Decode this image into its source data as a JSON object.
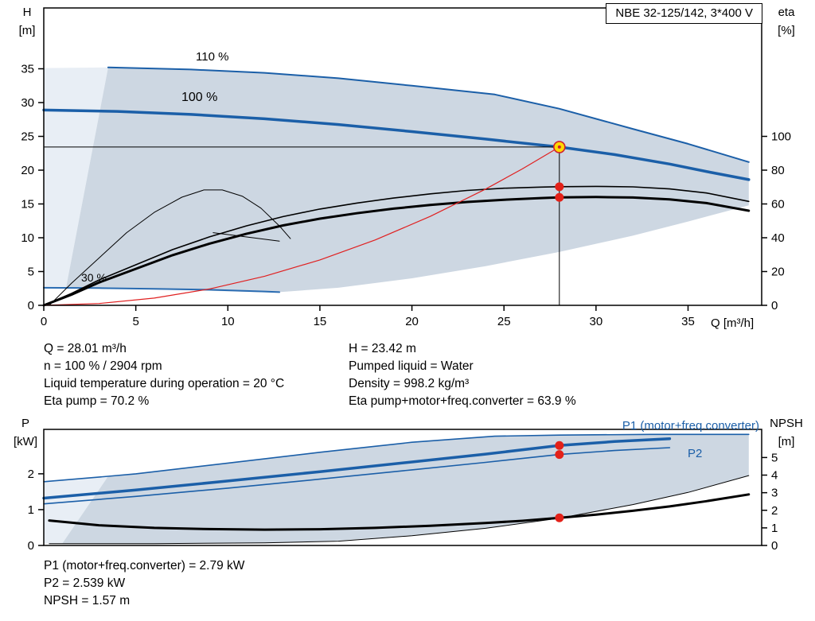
{
  "title": "NBE 32-125/142, 3*400 V",
  "axes": {
    "h": [
      "H",
      "[m]"
    ],
    "eta": [
      "eta",
      "[%]"
    ],
    "q": "Q [m³/h]",
    "p": [
      "P",
      "[kW]"
    ],
    "npsh": [
      "NPSH",
      "[m]"
    ]
  },
  "info_top": {
    "left": [
      "Q = 28.01 m³/h",
      "n = 100 % / 2904 rpm",
      "Liquid temperature during operation = 20 °C",
      "Eta pump = 70.2 %"
    ],
    "right": [
      "H = 23.42 m",
      "Pumped liquid = Water",
      "Density = 998.2 kg/m³",
      "Eta pump+motor+freq.converter = 63.9 %"
    ]
  },
  "info_bottom": [
    "P1 (motor+freq.converter) = 2.79 kW",
    "P2 = 2.539 kW",
    "NPSH = 1.57 m"
  ],
  "colors": {
    "curve_blue": "#1b5fa8",
    "envelope": "#cdd7e2",
    "envelope_light": "#e8eef5",
    "system_red": "#e02020",
    "marker_red": "#e32119",
    "marker_yellow": "#ffd900",
    "black": "#000000"
  },
  "chart_data": [
    {
      "type": "line",
      "name": "head-flow-chart",
      "xlabel": "Q [m³/h]",
      "ylabel": "H [m]",
      "y2label": "eta [%]",
      "xlim": [
        0,
        39
      ],
      "ylim": [
        0,
        44
      ],
      "y2lim": [
        0,
        176
      ],
      "xticks": [
        0,
        5,
        10,
        15,
        20,
        25,
        30,
        35
      ],
      "yticks": [
        0,
        5,
        10,
        15,
        20,
        25,
        30,
        35
      ],
      "y2ticks": [
        0,
        20,
        40,
        60,
        80,
        100
      ],
      "show_xtick_labels": true,
      "areas": [
        {
          "name": "operating-range-light",
          "color": "#e8eef5",
          "points": [
            [
              0,
              2.5
            ],
            [
              0,
              35.1
            ],
            [
              3.5,
              35.2
            ],
            [
              1.2,
              2.5
            ]
          ]
        },
        {
          "name": "operating-range",
          "color": "#cdd7e2",
          "points": [
            [
              3.5,
              35.2
            ],
            [
              8,
              34.9
            ],
            [
              12,
              34.4
            ],
            [
              16,
              33.6
            ],
            [
              20,
              32.5
            ],
            [
              24.5,
              31.2
            ],
            [
              28,
              29.1
            ],
            [
              32,
              26.1
            ],
            [
              35,
              23.9
            ],
            [
              38.3,
              21.2
            ],
            [
              38.3,
              14.8
            ],
            [
              35,
              12.4
            ],
            [
              32,
              10.3
            ],
            [
              28,
              7.9
            ],
            [
              24,
              5.8
            ],
            [
              20,
              4.0
            ],
            [
              16,
              2.6
            ],
            [
              12.5,
              1.9
            ],
            [
              9,
              2.15
            ],
            [
              5,
              2.4
            ],
            [
              1.2,
              2.5
            ]
          ]
        }
      ],
      "series": [
        {
          "name": "head-curve-110pct",
          "label": "110 %",
          "axis": "y",
          "color": "#1b5fa8",
          "width": 2,
          "points": [
            [
              3.5,
              35.2
            ],
            [
              8,
              34.9
            ],
            [
              12,
              34.4
            ],
            [
              16,
              33.6
            ],
            [
              20,
              32.5
            ],
            [
              24.5,
              31.2
            ],
            [
              28,
              29.1
            ],
            [
              32,
              26.1
            ],
            [
              35,
              23.9
            ],
            [
              38.3,
              21.2
            ]
          ]
        },
        {
          "name": "head-curve-100pct",
          "label": "100 %",
          "axis": "y",
          "color": "#1b5fa8",
          "width": 3.5,
          "points": [
            [
              0,
              28.9
            ],
            [
              4,
              28.7
            ],
            [
              8,
              28.25
            ],
            [
              12,
              27.6
            ],
            [
              16,
              26.75
            ],
            [
              20,
              25.7
            ],
            [
              24,
              24.6
            ],
            [
              28.01,
              23.42
            ],
            [
              31,
              22.3
            ],
            [
              34,
              20.9
            ],
            [
              36.2,
              19.7
            ],
            [
              38.3,
              18.6
            ]
          ]
        },
        {
          "name": "head-curve-30pct",
          "label": "30 %",
          "axis": "y",
          "color": "#2a6cb2",
          "width": 2,
          "points": [
            [
              0,
              2.6
            ],
            [
              3,
              2.55
            ],
            [
              6,
              2.45
            ],
            [
              9,
              2.3
            ],
            [
              12,
              2.05
            ],
            [
              12.8,
              1.95
            ]
          ]
        },
        {
          "name": "eta-pump-curve",
          "axis": "y2",
          "color": "#000000",
          "width": 1.6,
          "points": [
            [
              0,
              0
            ],
            [
              1.5,
              7
            ],
            [
              3,
              15
            ],
            [
              5,
              24
            ],
            [
              7,
              33
            ],
            [
              9,
              40.5
            ],
            [
              11,
              47
            ],
            [
              13,
              52.5
            ],
            [
              15,
              57
            ],
            [
              17,
              60.5
            ],
            [
              19,
              63.5
            ],
            [
              21,
              66
            ],
            [
              23,
              68
            ],
            [
              25,
              69.3
            ],
            [
              27,
              70
            ],
            [
              28.01,
              70.2
            ],
            [
              30,
              70.4
            ],
            [
              32,
              70.1
            ],
            [
              34,
              68.9
            ],
            [
              36,
              66.5
            ],
            [
              38.3,
              61.5
            ]
          ]
        },
        {
          "name": "eta-total-curve",
          "axis": "y2",
          "color": "#000000",
          "width": 3,
          "points": [
            [
              0,
              0
            ],
            [
              1.5,
              6.3
            ],
            [
              3,
              13.5
            ],
            [
              5,
              21.6
            ],
            [
              7,
              29.7
            ],
            [
              9,
              36.5
            ],
            [
              11,
              42.3
            ],
            [
              13,
              47.3
            ],
            [
              15,
              51.3
            ],
            [
              17,
              54.5
            ],
            [
              19,
              57.2
            ],
            [
              21,
              59.4
            ],
            [
              23,
              61.2
            ],
            [
              25,
              62.5
            ],
            [
              27,
              63.5
            ],
            [
              28.01,
              63.9
            ],
            [
              30,
              64.1
            ],
            [
              32,
              63.8
            ],
            [
              34,
              62.7
            ],
            [
              36,
              60.5
            ],
            [
              38.3,
              56
            ]
          ]
        },
        {
          "name": "eta-reduced-speed-curve",
          "axis": "y2",
          "color": "#000000",
          "width": 1,
          "points": [
            [
              0.3,
              0
            ],
            [
              1.5,
              13
            ],
            [
              3,
              28
            ],
            [
              4.5,
              43
            ],
            [
              6,
              55
            ],
            [
              7.5,
              64
            ],
            [
              8.7,
              68.3
            ],
            [
              9.7,
              68.3
            ],
            [
              10.8,
              64.5
            ],
            [
              11.8,
              57.5
            ],
            [
              12.8,
              47
            ],
            [
              13.4,
              39.5
            ]
          ]
        },
        {
          "name": "eta-pointer-line",
          "axis": "y2",
          "color": "#000000",
          "width": 1,
          "points": [
            [
              9.2,
              43
            ],
            [
              12.8,
              38
            ]
          ]
        },
        {
          "name": "system-curve",
          "axis": "y",
          "color": "#e02020",
          "width": 1.2,
          "points": [
            [
              0,
              0
            ],
            [
              3,
              0.27
            ],
            [
              6,
              1.07
            ],
            [
              9,
              2.42
            ],
            [
              12,
              4.3
            ],
            [
              15,
              6.72
            ],
            [
              18,
              9.67
            ],
            [
              21,
              13.17
            ],
            [
              24,
              17.2
            ],
            [
              26,
              20.19
            ],
            [
              28.01,
              23.42
            ]
          ]
        },
        {
          "name": "duty-crosshair-vertical",
          "axis": "y",
          "color": "#000000",
          "width": 1,
          "points": [
            [
              28.01,
              0
            ],
            [
              28.01,
              23.42
            ]
          ]
        },
        {
          "name": "duty-crosshair-horizontal",
          "axis": "y",
          "color": "#000000",
          "width": 1,
          "points": [
            [
              0,
              23.42
            ],
            [
              28.01,
              23.42
            ]
          ]
        }
      ],
      "markers": [
        {
          "name": "duty-point",
          "type": "ring",
          "axis": "y",
          "x": 28.01,
          "y": 23.42
        },
        {
          "name": "eta-pump-point",
          "type": "dot",
          "axis": "y2",
          "x": 28.01,
          "y": 70.2
        },
        {
          "name": "eta-total-point",
          "type": "dot",
          "axis": "y2",
          "x": 28.01,
          "y": 63.9
        }
      ]
    },
    {
      "type": "line",
      "name": "power-npsh-chart",
      "xlabel": "",
      "ylabel": "P [kW]",
      "y2label": "NPSH [m]",
      "xlim": [
        0,
        39
      ],
      "ylim": [
        0,
        3.24
      ],
      "y2lim": [
        0,
        6.6
      ],
      "xticks": [],
      "yticks": [
        0,
        1,
        2
      ],
      "y2ticks": [
        0,
        1,
        2,
        3,
        4,
        5
      ],
      "show_xtick_labels": false,
      "areas": [
        {
          "name": "power-range-light",
          "color": "#e8eef5",
          "points": [
            [
              0,
              0.05
            ],
            [
              0,
              1.78
            ],
            [
              3.5,
              1.93
            ],
            [
              1,
              0.05
            ]
          ]
        },
        {
          "name": "power-range",
          "color": "#cdd7e2",
          "points": [
            [
              3.5,
              1.93
            ],
            [
              5,
              2.0
            ],
            [
              10,
              2.3
            ],
            [
              15,
              2.6
            ],
            [
              20,
              2.88
            ],
            [
              24.5,
              3.05
            ],
            [
              28,
              3.08
            ],
            [
              33,
              3.1
            ],
            [
              38.3,
              3.1
            ],
            [
              38.3,
              1.95
            ],
            [
              35,
              1.48
            ],
            [
              32,
              1.14
            ],
            [
              28,
              0.76
            ],
            [
              24,
              0.48
            ],
            [
              20,
              0.28
            ],
            [
              16,
              0.14
            ],
            [
              12.5,
              0.07
            ],
            [
              8,
              0.06
            ],
            [
              4,
              0.05
            ],
            [
              1,
              0.05
            ]
          ]
        }
      ],
      "series": [
        {
          "name": "p1-110pct-curve",
          "label": "P1 (motor+freq.converter)",
          "axis": "y",
          "color": "#1b5fa8",
          "width": 1.6,
          "points": [
            [
              0,
              1.78
            ],
            [
              3.5,
              1.93
            ],
            [
              5,
              2.0
            ],
            [
              10,
              2.3
            ],
            [
              15,
              2.6
            ],
            [
              20,
              2.88
            ],
            [
              24.5,
              3.05
            ],
            [
              28,
              3.08
            ],
            [
              33,
              3.1
            ],
            [
              38.3,
              3.1
            ]
          ]
        },
        {
          "name": "p1-100pct-curve",
          "axis": "y",
          "color": "#1b5fa8",
          "width": 3.5,
          "points": [
            [
              0,
              1.32
            ],
            [
              5,
              1.55
            ],
            [
              10,
              1.8
            ],
            [
              15,
              2.06
            ],
            [
              20,
              2.33
            ],
            [
              24,
              2.55
            ],
            [
              28.01,
              2.79
            ],
            [
              31,
              2.9
            ],
            [
              34,
              2.98
            ]
          ]
        },
        {
          "name": "p2-100pct-curve",
          "label": "P2",
          "axis": "y",
          "color": "#1b5fa8",
          "width": 1.6,
          "points": [
            [
              0,
              1.16
            ],
            [
              5,
              1.37
            ],
            [
              10,
              1.6
            ],
            [
              15,
              1.85
            ],
            [
              20,
              2.11
            ],
            [
              24,
              2.32
            ],
            [
              28.01,
              2.539
            ],
            [
              31,
              2.65
            ],
            [
              34,
              2.73
            ]
          ]
        },
        {
          "name": "power-min-speed-curve",
          "axis": "y",
          "color": "#000000",
          "width": 1,
          "points": [
            [
              0.3,
              0.05
            ],
            [
              6,
              0.05
            ],
            [
              12,
              0.07
            ],
            [
              16,
              0.12
            ],
            [
              20,
              0.27
            ],
            [
              24,
              0.48
            ],
            [
              28,
              0.76
            ],
            [
              32,
              1.14
            ],
            [
              35,
              1.48
            ],
            [
              38.3,
              1.95
            ]
          ]
        },
        {
          "name": "npsh-curve",
          "axis": "y2",
          "color": "#000000",
          "width": 3,
          "points": [
            [
              0.3,
              1.42
            ],
            [
              3,
              1.15
            ],
            [
              6,
              1.0
            ],
            [
              9,
              0.93
            ],
            [
              12,
              0.9
            ],
            [
              15,
              0.92
            ],
            [
              18,
              1.0
            ],
            [
              21,
              1.12
            ],
            [
              24,
              1.28
            ],
            [
              26,
              1.4
            ],
            [
              28.01,
              1.57
            ],
            [
              30,
              1.75
            ],
            [
              32,
              1.97
            ],
            [
              34,
              2.22
            ],
            [
              36,
              2.52
            ],
            [
              38.3,
              2.9
            ]
          ]
        }
      ],
      "markers": [
        {
          "name": "p1-point",
          "type": "dot",
          "axis": "y",
          "x": 28.01,
          "y": 2.79
        },
        {
          "name": "p2-point",
          "type": "dot",
          "axis": "y",
          "x": 28.01,
          "y": 2.539
        },
        {
          "name": "npsh-point",
          "type": "dot",
          "axis": "y2",
          "x": 28.01,
          "y": 1.57
        }
      ]
    }
  ]
}
